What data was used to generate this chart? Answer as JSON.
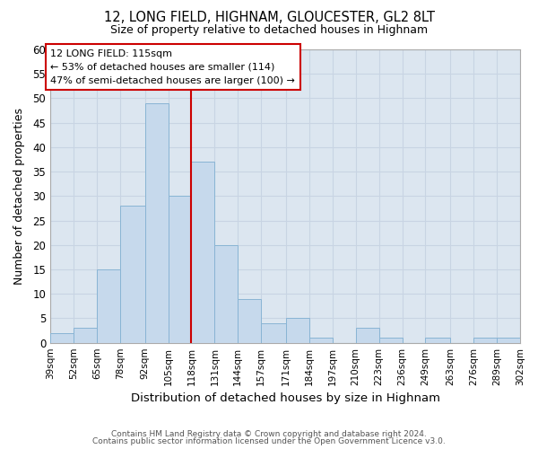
{
  "title1": "12, LONG FIELD, HIGHNAM, GLOUCESTER, GL2 8LT",
  "title2": "Size of property relative to detached houses in Highnam",
  "xlabel": "Distribution of detached houses by size in Highnam",
  "ylabel": "Number of detached properties",
  "footer1": "Contains HM Land Registry data © Crown copyright and database right 2024.",
  "footer2": "Contains public sector information licensed under the Open Government Licence v3.0.",
  "bins": [
    39,
    52,
    65,
    78,
    92,
    105,
    118,
    131,
    144,
    157,
    171,
    184,
    197,
    210,
    223,
    236,
    249,
    263,
    276,
    289,
    302
  ],
  "counts": [
    2,
    3,
    15,
    28,
    49,
    30,
    37,
    20,
    9,
    4,
    5,
    1,
    0,
    3,
    1,
    0,
    1,
    0,
    1,
    1
  ],
  "bar_color": "#c6d9ec",
  "bar_edge_color": "#89b4d4",
  "vline_x": 118,
  "vline_color": "#cc0000",
  "ylim": [
    0,
    60
  ],
  "yticks": [
    0,
    5,
    10,
    15,
    20,
    25,
    30,
    35,
    40,
    45,
    50,
    55,
    60
  ],
  "annotation_title": "12 LONG FIELD: 115sqm",
  "annotation_line1": "← 53% of detached houses are smaller (114)",
  "annotation_line2": "47% of semi-detached houses are larger (100) →",
  "annotation_box_color": "#ffffff",
  "annotation_box_edge": "#cc0000",
  "tick_labels": [
    "39sqm",
    "52sqm",
    "65sqm",
    "78sqm",
    "92sqm",
    "105sqm",
    "118sqm",
    "131sqm",
    "144sqm",
    "157sqm",
    "171sqm",
    "184sqm",
    "197sqm",
    "210sqm",
    "223sqm",
    "236sqm",
    "249sqm",
    "263sqm",
    "276sqm",
    "289sqm",
    "302sqm"
  ],
  "grid_color": "#c8d4e3",
  "background_color": "#ffffff",
  "axes_facecolor": "#dce6f0"
}
